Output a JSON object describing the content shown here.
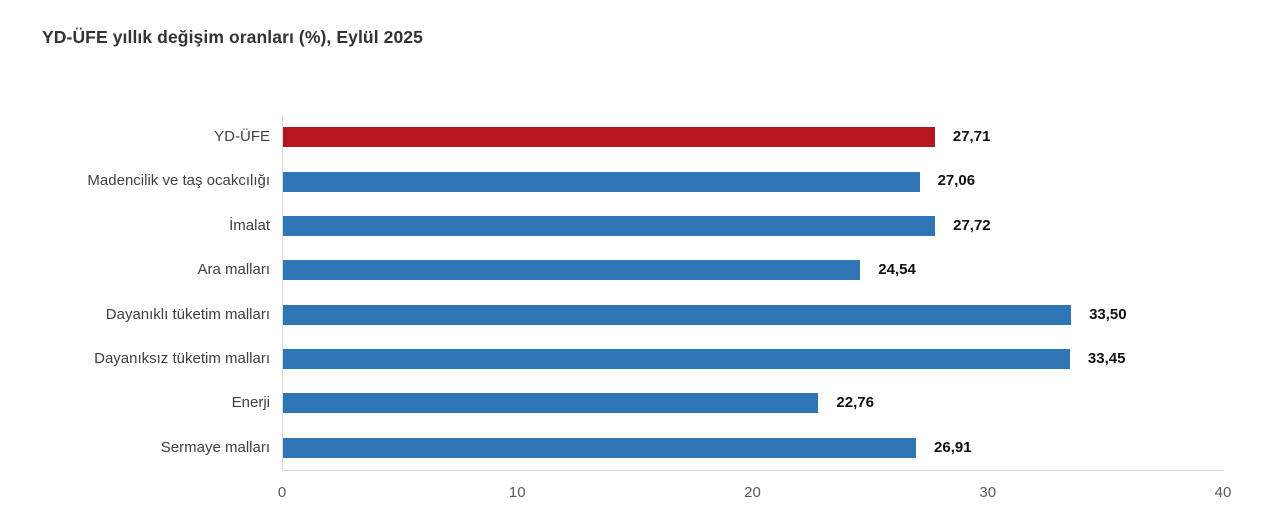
{
  "chart_data": {
    "type": "bar",
    "orientation": "horizontal",
    "title": "YD-ÜFE yıllık değişim oranları (%), Eylül 2025",
    "categories": [
      "YD-ÜFE",
      "Madencilik ve taş ocakcılığı",
      "İmalat",
      "Ara malları",
      "Dayanıklı tüketim malları",
      "Dayanıksız tüketim malları",
      "Enerji",
      "Sermaye malları"
    ],
    "values": [
      27.71,
      27.06,
      27.72,
      24.54,
      33.5,
      33.45,
      22.76,
      26.91
    ],
    "value_labels": [
      "27,71",
      "27,06",
      "27,72",
      "24,54",
      "33,50",
      "33,45",
      "22,76",
      "26,91"
    ],
    "xlabel": "",
    "ylabel": "",
    "xlim": [
      0,
      40
    ],
    "xticks": [
      0,
      10,
      20,
      30,
      40
    ],
    "xtick_labels": [
      "0",
      "10",
      "20",
      "30",
      "40"
    ],
    "grid": false,
    "legend": "none",
    "highlight_index": 0,
    "colors": {
      "highlight_bar": "#b5161f",
      "default_bar": "#2e76b5",
      "axis_line": "#d9d9d9",
      "tick_label": "#595959",
      "category_label": "#404040",
      "value_label": "#111111",
      "title": "#333333",
      "background": "#ffffff"
    }
  }
}
